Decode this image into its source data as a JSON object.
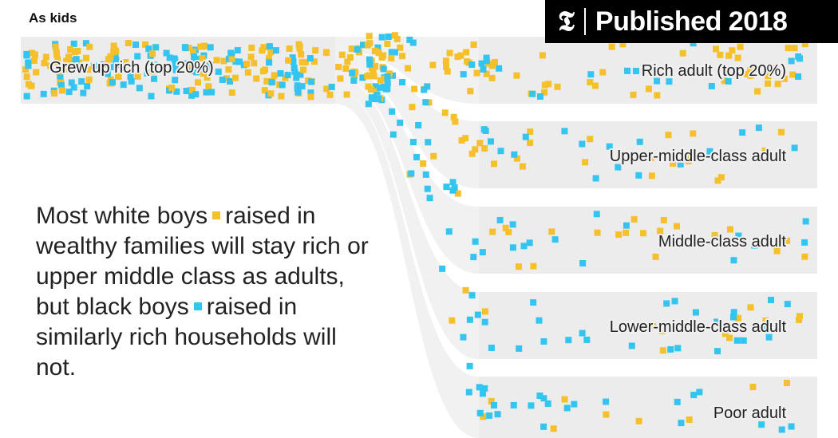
{
  "header": {
    "section_label": "As kids",
    "badge_logo": "𝕿",
    "badge_text": "Published 2018"
  },
  "annotation": {
    "part1": "Most white boys",
    "part2": "raised in wealthy families will stay rich or upper middle class as adults, but black boys",
    "part3": "raised in similarly rich households will not."
  },
  "colors": {
    "white_boys": "#f5c02a",
    "black_boys": "#33c5f0",
    "band": "#ececec"
  },
  "source_node": {
    "label": "Grew up rich (top 20%)"
  },
  "destinations": [
    {
      "label": "Rich adult (top 20%)",
      "white_share": 0.41,
      "black_share": 0.18
    },
    {
      "label": "Upper-middle-class adult",
      "white_share": 0.24,
      "black_share": 0.16
    },
    {
      "label": "Middle-class adult",
      "white_share": 0.16,
      "black_share": 0.18
    },
    {
      "label": "Lower-middle-class adult",
      "white_share": 0.11,
      "black_share": 0.26
    },
    {
      "label": "Poor adult",
      "white_share": 0.08,
      "black_share": 0.22
    }
  ]
}
